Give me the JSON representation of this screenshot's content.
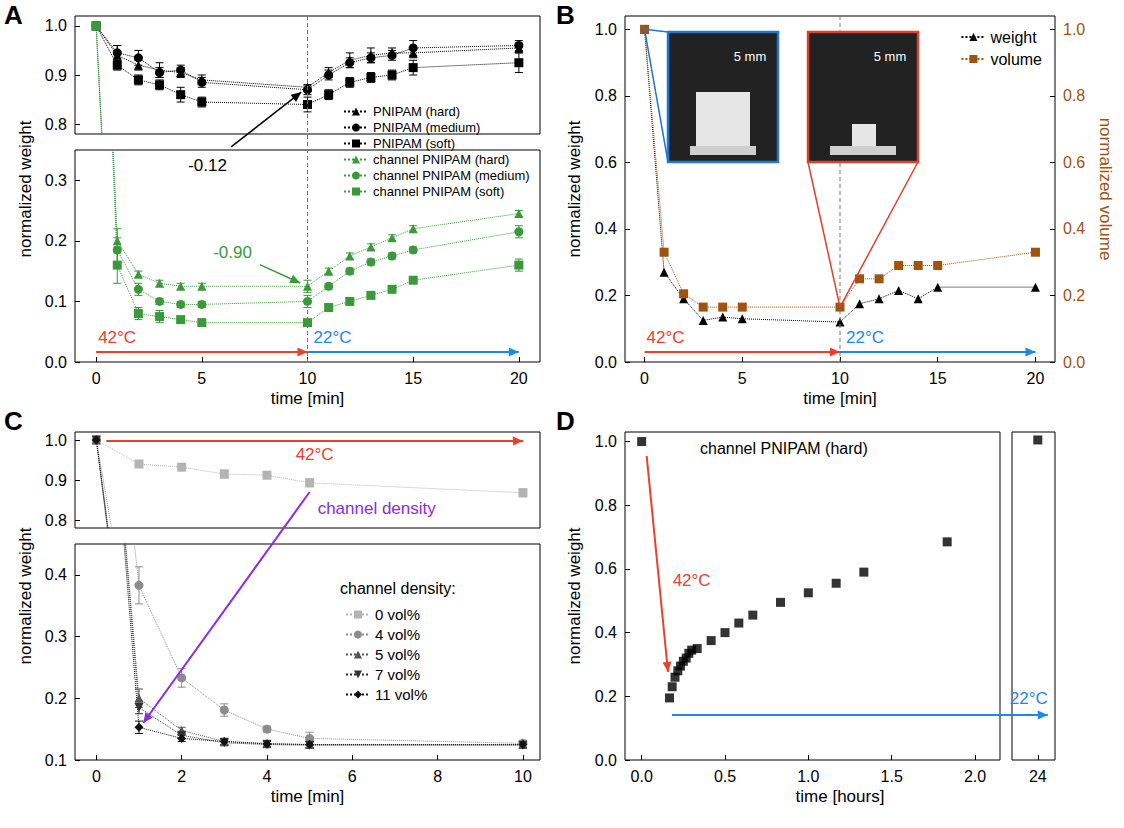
{
  "chart_data": [
    {
      "panel": "A",
      "type": "line",
      "x_label": "time [min]",
      "y_label": "normalized weight",
      "xlim": [
        -1,
        21
      ],
      "xticks": [
        0,
        5,
        10,
        15,
        20
      ],
      "ylim": [
        0,
        1.02
      ],
      "ybreak": [
        0.35,
        0.78
      ],
      "yticks": [
        {
          "value": 0,
          "label": "0.0"
        },
        0.1,
        0.2,
        0.3,
        0.8,
        0.9,
        {
          "value": 1,
          "label": "1.0"
        }
      ],
      "grid": false,
      "legend": "right",
      "x": [
        0,
        1,
        2,
        3,
        4,
        5,
        10,
        11,
        12,
        13,
        14,
        15,
        20
      ],
      "series": [
        {
          "name": "PNIPAM (hard)",
          "color": "#000000",
          "marker": "triangle",
          "line_style": "dotted",
          "values": [
            1.0,
            0.94,
            0.92,
            0.91,
            0.905,
            0.89,
            0.875,
            0.905,
            0.93,
            0.94,
            0.945,
            0.945,
            0.955
          ],
          "errors": [
            0,
            0.02,
            0.01,
            0.015,
            0.01,
            0.01,
            0.005,
            0.01,
            0.015,
            0.015,
            0.01,
            0.01,
            0.01
          ]
        },
        {
          "name": "PNIPAM (medium)",
          "color": "#000000",
          "marker": "circle",
          "line_style": "dotted",
          "values": [
            1.0,
            0.945,
            0.935,
            0.905,
            0.91,
            0.885,
            0.87,
            0.9,
            0.925,
            0.935,
            0.94,
            0.955,
            0.96
          ],
          "errors": [
            0,
            0.015,
            0.015,
            0.01,
            0.01,
            0.01,
            0.01,
            0.01,
            0.01,
            0.01,
            0.01,
            0.015,
            0.01
          ]
        },
        {
          "name": "PNIPAM (soft)",
          "color": "#000000",
          "marker": "square",
          "line_style": "dotted",
          "values": [
            1.0,
            0.92,
            0.89,
            0.88,
            0.86,
            0.845,
            0.84,
            0.86,
            0.885,
            0.895,
            0.9,
            0.915,
            0.925
          ],
          "errors": [
            0,
            0.01,
            0.01,
            0.01,
            0.015,
            0.01,
            0.015,
            0.01,
            0.01,
            0.01,
            0.01,
            0.015,
            0.02
          ]
        },
        {
          "name": "channel PNIPAM (hard)",
          "color": "#3a9a3a",
          "marker": "triangle",
          "line_style": "dotted",
          "values": [
            1.0,
            0.2,
            0.145,
            0.13,
            0.125,
            0.125,
            0.125,
            0.15,
            0.175,
            0.19,
            0.205,
            0.22,
            0.245
          ],
          "errors": [
            0,
            0.02,
            0.005,
            0.005,
            0.005,
            0.005,
            0.01,
            0.005,
            0.005,
            0.005,
            0.005,
            0.005,
            0.005
          ]
        },
        {
          "name": "channel PNIPAM (medium)",
          "color": "#3a9a3a",
          "marker": "circle",
          "line_style": "dotted",
          "values": [
            1.0,
            0.185,
            0.12,
            0.1,
            0.095,
            0.095,
            0.1,
            0.125,
            0.15,
            0.165,
            0.175,
            0.185,
            0.215
          ],
          "errors": [
            0,
            0.02,
            0.01,
            0.005,
            0.005,
            0.005,
            0.01,
            0.005,
            0.005,
            0.005,
            0.005,
            0.005,
            0.01
          ]
        },
        {
          "name": "channel PNIPAM (soft)",
          "color": "#3a9a3a",
          "marker": "square",
          "line_style": "dotted",
          "values": [
            1.0,
            0.16,
            0.08,
            0.075,
            0.07,
            0.065,
            0.065,
            0.09,
            0.1,
            0.11,
            0.12,
            0.135,
            0.16
          ],
          "errors": [
            0,
            0.03,
            0.01,
            0.01,
            0.005,
            0.005,
            0.005,
            0.005,
            0.005,
            0.005,
            0.005,
            0.005,
            0.01
          ]
        }
      ],
      "annotations": [
        {
          "text": "-0.12",
          "x": 10,
          "y": 0.875,
          "color": "#000000"
        },
        {
          "text": "-0.90",
          "x": 10,
          "y": 0.125,
          "color": "#3a9a3a"
        }
      ],
      "phases": [
        {
          "label": "42°C",
          "from": 0,
          "to": 10,
          "color": "#e8412c"
        },
        {
          "label": "22°C",
          "from": 10,
          "to": 20,
          "color": "#1e88e5"
        }
      ]
    },
    {
      "panel": "B",
      "type": "line",
      "x_label": "time [min]",
      "y_label": "normalized weight",
      "y2_label": "normalized volume",
      "xlim": [
        -1,
        21
      ],
      "xticks": [
        0,
        5,
        10,
        15,
        20
      ],
      "ylim": [
        0,
        1.04
      ],
      "yticks": [
        {
          "value": 0,
          "label": "0.0"
        },
        0.2,
        0.4,
        0.6,
        0.8,
        {
          "value": 1,
          "label": "1.0"
        }
      ],
      "y2lim": [
        0,
        1.04
      ],
      "y2ticks": [
        {
          "value": 0,
          "label": "0.0"
        },
        0.2,
        0.4,
        0.6,
        0.8,
        {
          "value": 1,
          "label": "1.0"
        }
      ],
      "grid": false,
      "legend": "upper right",
      "x": [
        0,
        1,
        2,
        3,
        4,
        5,
        10,
        11,
        12,
        13,
        14,
        15,
        20
      ],
      "series": [
        {
          "name": "weight",
          "color": "#000000",
          "marker": "triangle",
          "line_style": "dotted",
          "values": [
            1.0,
            0.27,
            0.19,
            0.125,
            0.135,
            0.13,
            0.12,
            0.175,
            0.19,
            0.215,
            0.19,
            0.225,
            0.225
          ]
        },
        {
          "name": "volume",
          "color": "#a0520f",
          "marker": "square",
          "line_style": "dotted",
          "axis": "y2",
          "values": [
            1.0,
            0.33,
            0.205,
            0.165,
            0.165,
            0.165,
            0.165,
            0.25,
            0.25,
            0.29,
            0.29,
            0.29,
            0.33
          ]
        }
      ],
      "insets": [
        {
          "scale_bar": "5 mm",
          "color": "#1f77d0",
          "at": 0
        },
        {
          "scale_bar": "5 mm",
          "color": "#e0412c",
          "at": 10
        }
      ],
      "phases": [
        {
          "label": "42°C",
          "from": 0,
          "to": 10,
          "color": "#e8412c"
        },
        {
          "label": "22°C",
          "from": 10,
          "to": 20,
          "color": "#1e88e5"
        }
      ]
    },
    {
      "panel": "C",
      "type": "line",
      "x_label": "time [min]",
      "y_label": "normalized weight",
      "xlim": [
        -0.5,
        10.4
      ],
      "xticks": [
        0,
        2,
        4,
        6,
        8,
        10
      ],
      "ylim": [
        0.1,
        1.02
      ],
      "ybreak": [
        0.45,
        0.78
      ],
      "yticks": [
        0.1,
        0.2,
        0.3,
        0.4,
        0.8,
        0.9,
        {
          "value": 1,
          "label": "1.0"
        }
      ],
      "grid": false,
      "legend": "right",
      "legend_title": "channel density:",
      "x": [
        0,
        1,
        2,
        3,
        4,
        5,
        10
      ],
      "series": [
        {
          "name": "0 vol%",
          "color": "#b4b4b4",
          "marker": "square",
          "line_style": "dotted",
          "values": [
            1.0,
            0.94,
            0.932,
            0.915,
            0.912,
            0.893,
            0.868
          ],
          "errors": [
            0,
            0.003,
            0.003,
            0.01,
            0.003,
            0.01,
            0.01
          ]
        },
        {
          "name": "4 vol%",
          "color": "#8c8c8c",
          "marker": "circle",
          "line_style": "dotted",
          "values": [
            1.0,
            0.383,
            0.233,
            0.181,
            0.15,
            0.135,
            0.127
          ],
          "errors": [
            0,
            0.03,
            0.015,
            0.01,
            0.005,
            0.01,
            0.005
          ]
        },
        {
          "name": "5 vol%",
          "color": "#555555",
          "marker": "triangle",
          "line_style": "dotted",
          "values": [
            1.0,
            0.2,
            0.148,
            0.13,
            0.127,
            0.125,
            0.125
          ],
          "errors": [
            0,
            0.015,
            0.005,
            0.005,
            0.005,
            0.005,
            0.005
          ]
        },
        {
          "name": "7 vol%",
          "color": "#333333",
          "marker": "triangle-down",
          "line_style": "dotted",
          "values": [
            1.0,
            0.185,
            0.14,
            0.128,
            0.125,
            0.124,
            0.124
          ],
          "errors": [
            0,
            0.01,
            0.005,
            0.005,
            0.005,
            0.005,
            0.005
          ]
        },
        {
          "name": "11 vol%",
          "color": "#111111",
          "marker": "diamond",
          "line_style": "dotted",
          "values": [
            1.0,
            0.153,
            0.135,
            0.13,
            0.126,
            0.125,
            0.125
          ],
          "errors": [
            0,
            0.01,
            0.005,
            0.005,
            0.005,
            0.005,
            0.005
          ]
        }
      ],
      "annotations": [
        {
          "text": "channel density",
          "from": [
            5,
            0.87
          ],
          "to": [
            1.1,
            0.16
          ],
          "color": "#8b2be2"
        }
      ],
      "phases": [
        {
          "label": "42°C",
          "from": 0,
          "to": 10,
          "color": "#e8412c"
        }
      ]
    },
    {
      "panel": "D",
      "type": "scatter",
      "title": "channel PNIPAM (hard)",
      "x_label": "time [hours]",
      "y_label": "normalized weight",
      "xlim": [
        -0.1,
        24.1
      ],
      "xbreak": [
        2.15,
        23.85
      ],
      "xticks": [
        {
          "value": 0,
          "label": "0.0"
        },
        0.5,
        {
          "value": 1,
          "label": "1.0"
        },
        1.5,
        {
          "value": 2,
          "label": "2.0"
        },
        24
      ],
      "ylim": [
        0,
        1.03
      ],
      "yticks": [
        {
          "value": 0,
          "label": "0.0"
        },
        0.2,
        0.4,
        0.6,
        0.8,
        {
          "value": 1,
          "label": "1.0"
        }
      ],
      "grid": false,
      "x": [
        0,
        0.167,
        0.183,
        0.2,
        0.217,
        0.233,
        0.25,
        0.267,
        0.283,
        0.3,
        0.333,
        0.417,
        0.5,
        0.583,
        0.667,
        0.833,
        1.0,
        1.167,
        1.333,
        1.833,
        24
      ],
      "series": [
        {
          "color": "#000000",
          "marker": "square",
          "values": [
            1.0,
            0.195,
            0.23,
            0.26,
            0.28,
            0.295,
            0.31,
            0.32,
            0.335,
            0.345,
            0.35,
            0.375,
            0.4,
            0.43,
            0.455,
            0.495,
            0.525,
            0.555,
            0.59,
            0.685,
            1.005
          ]
        }
      ],
      "phases": [
        {
          "label": "42°C",
          "from": 0,
          "to": 0.17,
          "color": "#e8412c"
        },
        {
          "label": "22°C",
          "from": 0.17,
          "to": 24,
          "color": "#1e88e5"
        }
      ]
    }
  ]
}
